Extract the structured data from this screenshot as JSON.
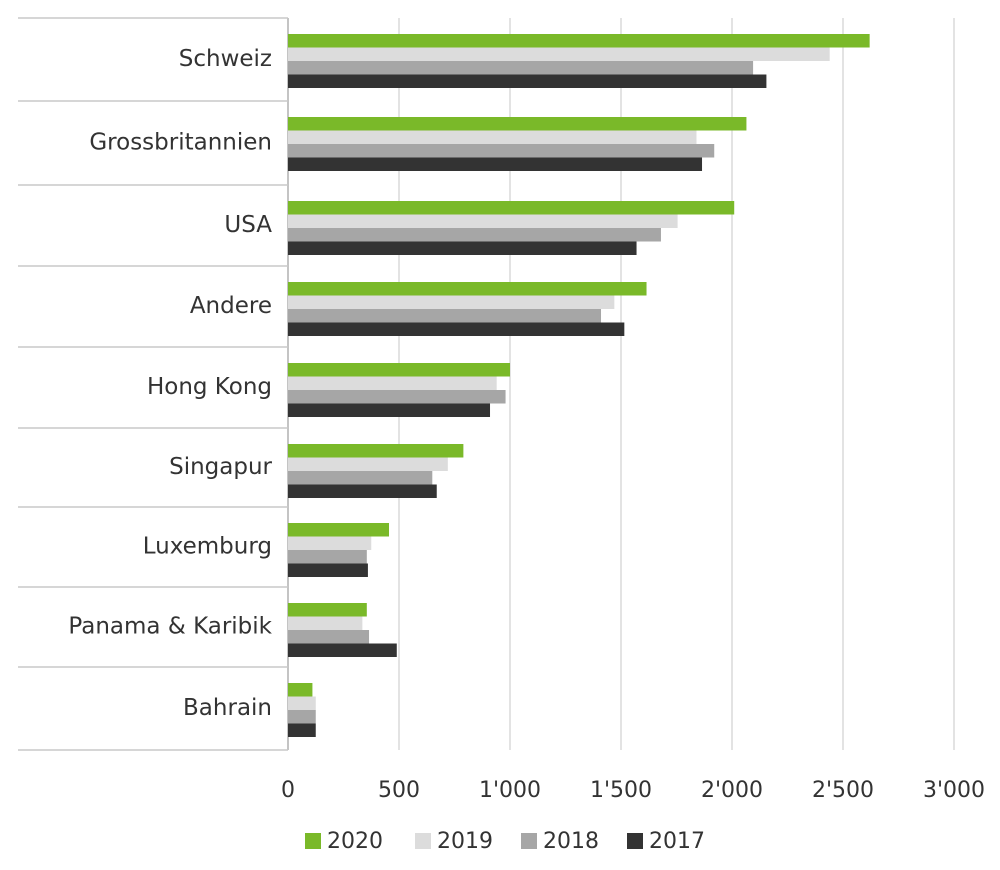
{
  "chart_data": {
    "type": "bar",
    "orientation": "horizontal",
    "categories": [
      "Schweiz",
      "Grossbritannien",
      "USA",
      "Andere",
      "Hong Kong",
      "Singapur",
      "Luxemburg",
      "Panama & Karibik",
      "Bahrain"
    ],
    "series": [
      {
        "name": "2020",
        "color": "#7ab929",
        "values": [
          2620,
          2065,
          2010,
          1615,
          1000,
          790,
          455,
          355,
          110
        ]
      },
      {
        "name": "2019",
        "color": "#dcdcdc",
        "values": [
          2440,
          1840,
          1755,
          1470,
          940,
          720,
          375,
          335,
          125
        ]
      },
      {
        "name": "2018",
        "color": "#a6a6a6",
        "values": [
          2095,
          1920,
          1680,
          1410,
          980,
          650,
          355,
          365,
          125
        ]
      },
      {
        "name": "2017",
        "color": "#333333",
        "values": [
          2155,
          1865,
          1570,
          1515,
          910,
          670,
          360,
          490,
          125
        ]
      }
    ],
    "xlim": [
      0,
      3000
    ],
    "xticks": [
      0,
      500,
      1000,
      1500,
      2000,
      2500,
      3000
    ],
    "xtick_labels": [
      "0",
      "500",
      "1'000",
      "1'500",
      "2'000",
      "2'500",
      "3'000"
    ],
    "grid": "vertical",
    "legend_position": "bottom",
    "title": "",
    "xlabel": "",
    "ylabel": ""
  }
}
